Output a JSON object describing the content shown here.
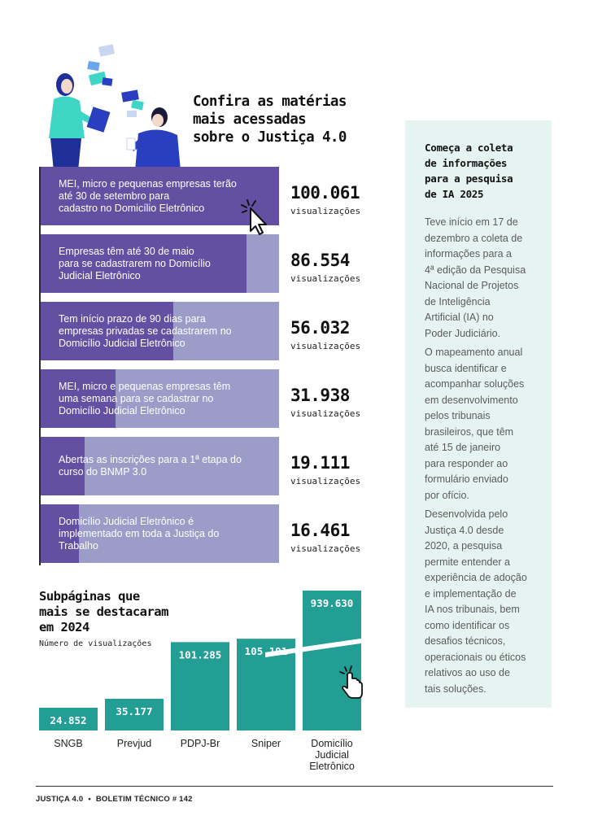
{
  "header": {
    "title": "Confira as matérias\nmais acessadas\nsobre o Justiça 4.0"
  },
  "articles": [
    {
      "text": "MEI, micro e pequenas empresas  terão\naté 30 de setembro para\ncadastro no Domicílio Eletrônico",
      "views": "100.061",
      "views_label": "visualizações",
      "value": 100061
    },
    {
      "text": "Empresas têm até 30 de maio\npara se cadastrarem no Domicílio\nJudicial Eletrônico",
      "views": "86.554",
      "views_label": "visualizações",
      "value": 86554
    },
    {
      "text": "Tem início prazo de 90 dias para\nempresas privadas se cadastrarem no\nDomicílio Judicial Eletrônico",
      "views": "56.032",
      "views_label": "visualizações",
      "value": 56032
    },
    {
      "text": "MEI, micro e pequenas empresas têm\numa semana para se cadastrar no\nDomicílio Judicial Eletrônico",
      "views": "31.938",
      "views_label": "visualizações",
      "value": 31938
    },
    {
      "text": "Abertas as inscrições para a 1ª etapa do\ncurso do BNMP 3.0",
      "views": "19.111",
      "views_label": "visualizações",
      "value": 19111
    },
    {
      "text": "Domicílio Judicial Eletrônico é\nimplementado em toda a Justiça do\nTrabalho",
      "views": "16.461",
      "views_label": "visualizações",
      "value": 16461
    }
  ],
  "sidebar": {
    "title": "Começa a coleta\nde informações\npara a pesquisa\nde IA 2025",
    "paragraphs": [
      "Teve início em 17 de\ndezembro a coleta de\ninformações para a\n4ª edição da Pesquisa\nNacional de Projetos\nde Inteligência\nArtificial (IA) no\nPoder Judiciário.",
      "O mapeamento anual\nbusca identificar e\nacompanhar soluções\nem desenvolvimento\npelos tribunais\nbrasileiros, que têm\naté 15 de janeiro\npara responder ao\nformulário enviado\npor ofício.",
      "Desenvolvida pelo\nJustiça 4.0 desde\n2020, a pesquisa\npermite entender a\nexperiência de adoção\ne implementação de\nIA nos tribunais, bem\ncomo identificar os\ndesafios técnicos,\noperacionais ou éticos\nrelativos ao uso de\ntais soluções."
    ]
  },
  "subpages": {
    "title": "Subpáginas que\nmais se destacaram\nem 2024",
    "subtitle": "Número de visualizações"
  },
  "chart_data": {
    "type": "bar",
    "title": "Subpáginas que mais se destacaram em 2024",
    "ylabel": "Número de visualizações",
    "categories": [
      "SNGB",
      "Prevjud",
      "PDPJ-Br",
      "Sniper",
      "Domicílio\nJudicial\nEletrônico"
    ],
    "values": [
      24852,
      35177,
      101285,
      105191,
      939630
    ],
    "value_labels": [
      "24.852",
      "35.177",
      "101.285",
      "105.191",
      "939.630"
    ],
    "axis_break": true,
    "color": "#239e94"
  },
  "colors": {
    "article_fill": "#6350a2",
    "article_bg": "#9c9cc9",
    "sidebar_bg": "#e6f4f1",
    "chart_bar": "#239e94"
  },
  "icons": {
    "hero": "people-with-documents-illustration",
    "cursor": "arrow-cursor-click-icon",
    "hand": "hand-pointer-click-icon"
  },
  "footer": {
    "brand": "JUSTIÇA 4.0",
    "separator": "•",
    "issue": "BOLETIM TÉCNICO # 142"
  }
}
